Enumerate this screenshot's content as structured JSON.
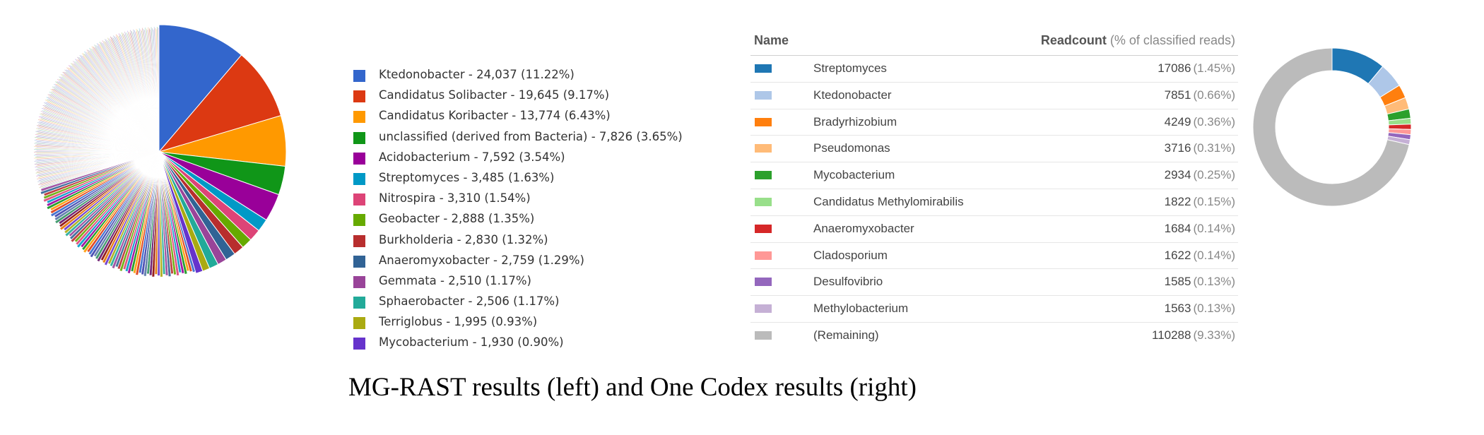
{
  "caption": "MG-RAST results (left) and One Codex results (right)",
  "chart_data": [
    {
      "type": "pie",
      "legend_position": "right",
      "legend": [
        {
          "label": "Ktedonobacter - 24,037 (11.22%)",
          "name": "Ktedonobacter",
          "value": 24037,
          "percent": 11.22,
          "color": "#3366cc"
        },
        {
          "label": "Candidatus Solibacter - 19,645 (9.17%)",
          "name": "Candidatus Solibacter",
          "value": 19645,
          "percent": 9.17,
          "color": "#dc3912"
        },
        {
          "label": "Candidatus Koribacter - 13,774 (6.43%)",
          "name": "Candidatus Koribacter",
          "value": 13774,
          "percent": 6.43,
          "color": "#ff9900"
        },
        {
          "label": "unclassified (derived from Bacteria) - 7,826 (3.65%)",
          "name": "unclassified (derived from Bacteria)",
          "value": 7826,
          "percent": 3.65,
          "color": "#109618"
        },
        {
          "label": "Acidobacterium - 7,592 (3.54%)",
          "name": "Acidobacterium",
          "value": 7592,
          "percent": 3.54,
          "color": "#990099"
        },
        {
          "label": "Streptomyces - 3,485 (1.63%)",
          "name": "Streptomyces",
          "value": 3485,
          "percent": 1.63,
          "color": "#0099c6"
        },
        {
          "label": "Nitrospira - 3,310 (1.54%)",
          "name": "Nitrospira",
          "value": 3310,
          "percent": 1.54,
          "color": "#dd4477"
        },
        {
          "label": "Geobacter - 2,888 (1.35%)",
          "name": "Geobacter",
          "value": 2888,
          "percent": 1.35,
          "color": "#66aa00"
        },
        {
          "label": "Burkholderia - 2,830 (1.32%)",
          "name": "Burkholderia",
          "value": 2830,
          "percent": 1.32,
          "color": "#b82e2e"
        },
        {
          "label": "Anaeromyxobacter - 2,759 (1.29%)",
          "name": "Anaeromyxobacter",
          "value": 2759,
          "percent": 1.29,
          "color": "#316395"
        },
        {
          "label": "Gemmata - 2,510 (1.17%)",
          "name": "Gemmata",
          "value": 2510,
          "percent": 1.17,
          "color": "#994499"
        },
        {
          "label": "Sphaerobacter - 2,506 (1.17%)",
          "name": "Sphaerobacter",
          "value": 2506,
          "percent": 1.17,
          "color": "#22aa99"
        },
        {
          "label": "Terriglobus - 1,995 (0.93%)",
          "name": "Terriglobus",
          "value": 1995,
          "percent": 0.93,
          "color": "#aaaa11"
        },
        {
          "label": "Mycobacterium - 1,930 (0.90%)",
          "name": "Mycobacterium",
          "value": 1930,
          "percent": 0.9,
          "color": "#6633cc"
        }
      ]
    },
    {
      "type": "table",
      "columns": {
        "name": "Name",
        "readcount": "Readcount",
        "readcount_note": "(% of classified reads)"
      },
      "rows": [
        {
          "name": "Streptomyces",
          "value": "17086",
          "pct": "(1.45%)",
          "color": "#1f77b4"
        },
        {
          "name": "Ktedonobacter",
          "value": "7851",
          "pct": "(0.66%)",
          "color": "#aec7e8"
        },
        {
          "name": "Bradyrhizobium",
          "value": "4249",
          "pct": "(0.36%)",
          "color": "#ff7f0e"
        },
        {
          "name": "Pseudomonas",
          "value": "3716",
          "pct": "(0.31%)",
          "color": "#ffbb78"
        },
        {
          "name": "Mycobacterium",
          "value": "2934",
          "pct": "(0.25%)",
          "color": "#2ca02c"
        },
        {
          "name": "Candidatus Methylomirabilis",
          "value": "1822",
          "pct": "(0.15%)",
          "color": "#98df8a"
        },
        {
          "name": "Anaeromyxobacter",
          "value": "1684",
          "pct": "(0.14%)",
          "color": "#d62728"
        },
        {
          "name": "Cladosporium",
          "value": "1622",
          "pct": "(0.14%)",
          "color": "#ff9896"
        },
        {
          "name": "Desulfovibrio",
          "value": "1585",
          "pct": "(0.13%)",
          "color": "#9467bd"
        },
        {
          "name": "Methylobacterium",
          "value": "1563",
          "pct": "(0.13%)",
          "color": "#c5b0d5"
        },
        {
          "name": "(Remaining)",
          "value": "110288",
          "pct": "(9.33%)",
          "color": "#bbbbbb"
        }
      ]
    },
    {
      "type": "pie",
      "style": "donut",
      "series": [
        {
          "name": "Streptomyces",
          "value": 17086,
          "color": "#1f77b4"
        },
        {
          "name": "Ktedonobacter",
          "value": 7851,
          "color": "#aec7e8"
        },
        {
          "name": "Bradyrhizobium",
          "value": 4249,
          "color": "#ff7f0e"
        },
        {
          "name": "Pseudomonas",
          "value": 3716,
          "color": "#ffbb78"
        },
        {
          "name": "Mycobacterium",
          "value": 2934,
          "color": "#2ca02c"
        },
        {
          "name": "Candidatus Methylomirabilis",
          "value": 1822,
          "color": "#98df8a"
        },
        {
          "name": "Anaeromyxobacter",
          "value": 1684,
          "color": "#d62728"
        },
        {
          "name": "Cladosporium",
          "value": 1622,
          "color": "#ff9896"
        },
        {
          "name": "Desulfovibrio",
          "value": 1585,
          "color": "#9467bd"
        },
        {
          "name": "Methylobacterium",
          "value": 1563,
          "color": "#c5b0d5"
        },
        {
          "name": "(Remaining)",
          "value": 110288,
          "color": "#bbbbbb"
        }
      ]
    }
  ]
}
